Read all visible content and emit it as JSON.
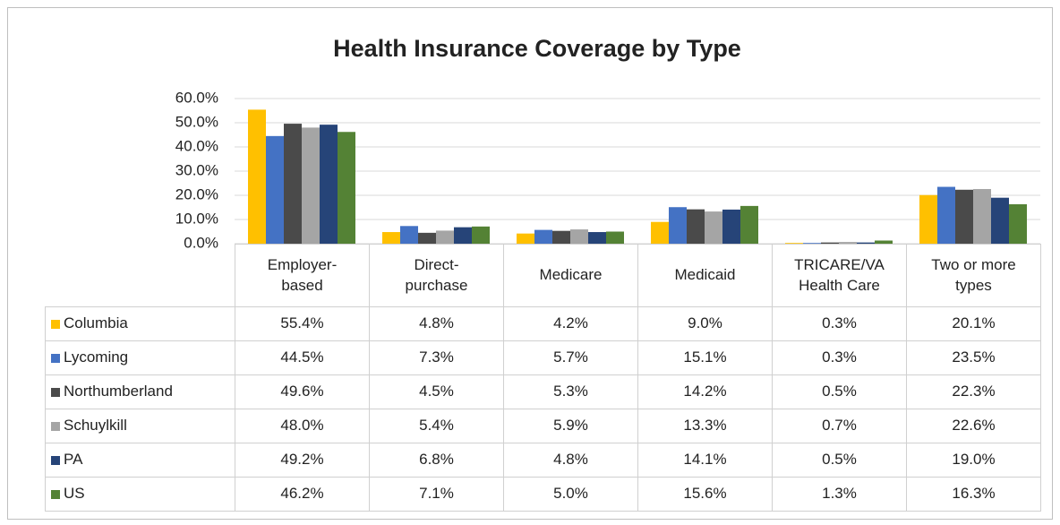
{
  "chart_data": {
    "type": "bar",
    "title": "Health Insurance Coverage by Type",
    "categories": [
      "Employer-\nbased",
      "Direct-\npurchase",
      "Medicare",
      "Medicaid",
      "TRICARE/VA\nHealth Care",
      "Two or more\ntypes"
    ],
    "series": [
      {
        "name": "Columbia",
        "color": "#ffc000",
        "values": [
          55.4,
          4.8,
          4.2,
          9.0,
          0.3,
          20.1
        ],
        "value_labels": [
          "55.4%",
          "4.8%",
          "4.2%",
          "9.0%",
          "0.3%",
          "20.1%"
        ]
      },
      {
        "name": "Lycoming",
        "color": "#4472c4",
        "values": [
          44.5,
          7.3,
          5.7,
          15.1,
          0.3,
          23.5
        ],
        "value_labels": [
          "44.5%",
          "7.3%",
          "5.7%",
          "15.1%",
          "0.3%",
          "23.5%"
        ]
      },
      {
        "name": "Northumberland",
        "color": "#4a4a4a",
        "values": [
          49.6,
          4.5,
          5.3,
          14.2,
          0.5,
          22.3
        ],
        "value_labels": [
          "49.6%",
          "4.5%",
          "5.3%",
          "14.2%",
          "0.5%",
          "22.3%"
        ]
      },
      {
        "name": "Schuylkill",
        "color": "#a5a5a5",
        "values": [
          48.0,
          5.4,
          5.9,
          13.3,
          0.7,
          22.6
        ],
        "value_labels": [
          "48.0%",
          "5.4%",
          "5.9%",
          "13.3%",
          "0.7%",
          "22.6%"
        ]
      },
      {
        "name": "PA",
        "color": "#264478",
        "values": [
          49.2,
          6.8,
          4.8,
          14.1,
          0.5,
          19.0
        ],
        "value_labels": [
          "49.2%",
          "6.8%",
          "4.8%",
          "14.1%",
          "0.5%",
          "19.0%"
        ]
      },
      {
        "name": "US",
        "color": "#548235",
        "values": [
          46.2,
          7.1,
          5.0,
          15.6,
          1.3,
          16.3
        ],
        "value_labels": [
          "46.2%",
          "7.1%",
          "5.0%",
          "15.6%",
          "1.3%",
          "16.3%"
        ]
      }
    ],
    "ylim": [
      0,
      60
    ],
    "yticks": [
      {
        "value": 0,
        "label": "0.0%"
      },
      {
        "value": 10,
        "label": "10.0%"
      },
      {
        "value": 20,
        "label": "20.0%"
      },
      {
        "value": 30,
        "label": "30.0%"
      },
      {
        "value": 40,
        "label": "40.0%"
      },
      {
        "value": 50,
        "label": "50.0%"
      },
      {
        "value": 60,
        "label": "60.0%"
      }
    ],
    "grid": true
  }
}
